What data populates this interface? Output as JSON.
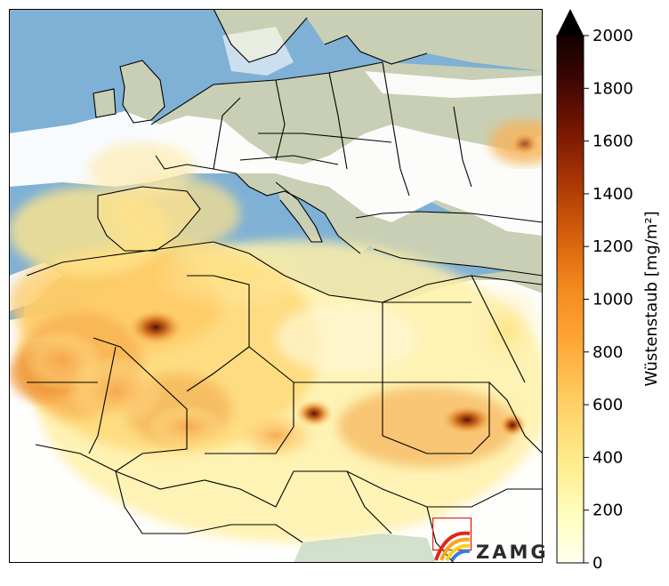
{
  "colorbar": {
    "title": "Wüstenstaub [mg/m²]",
    "ticks": [
      "0",
      "200",
      "400",
      "600",
      "800",
      "1000",
      "1200",
      "1400",
      "1600",
      "1800",
      "2000"
    ],
    "extend": "max",
    "colormap": [
      "#fffff0",
      "#ffffc4",
      "#ffe98a",
      "#ffc65a",
      "#ff9a2a",
      "#e8680c",
      "#c04204",
      "#8c1f02",
      "#5a0a02",
      "#2a0502",
      "#000000"
    ]
  },
  "map": {
    "region": "Europe, North Africa, Middle East",
    "sea_color": "#7fb0d5",
    "land_color": "#c8cfb4",
    "border_color": "#000000"
  },
  "logo": {
    "text": "ZAMG"
  }
}
